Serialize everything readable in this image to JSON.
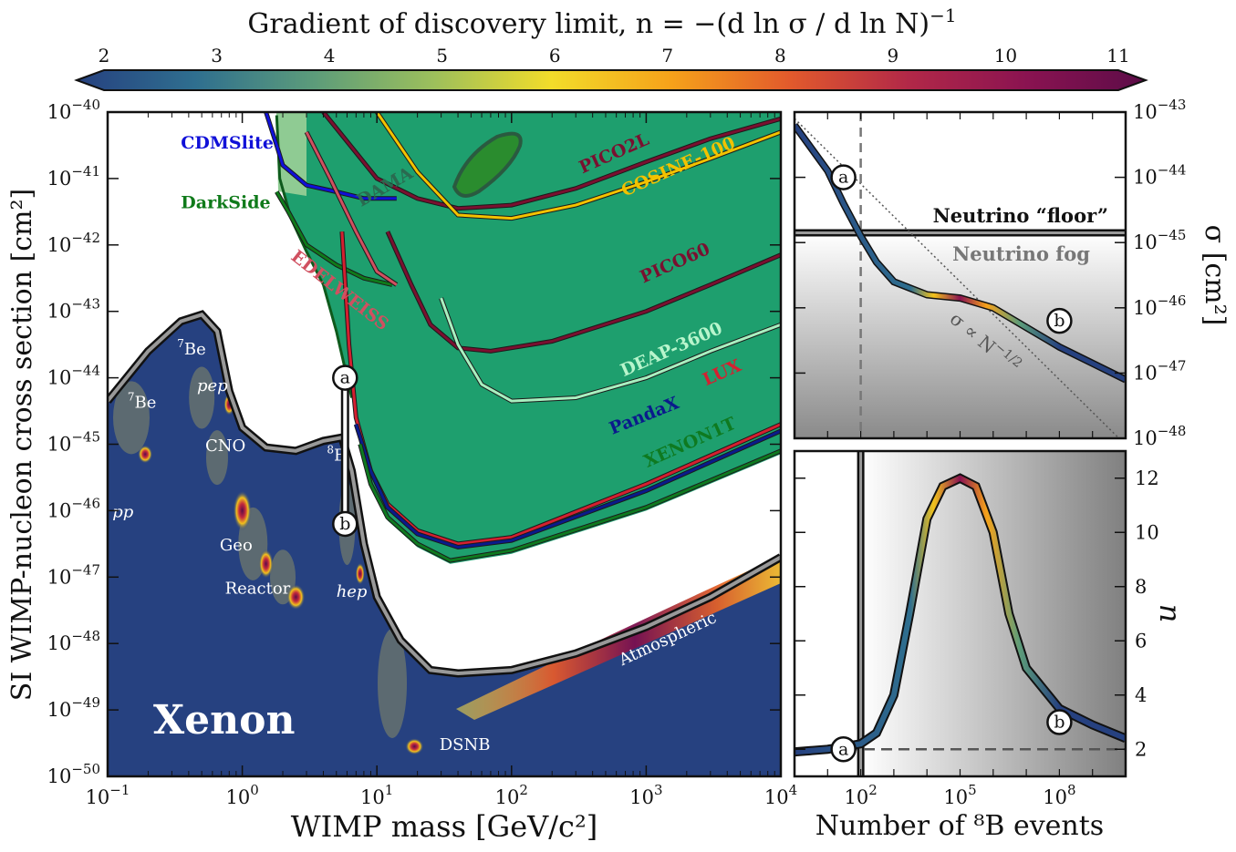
{
  "colorbar": {
    "title": "Gradient of discovery limit, n = −(d ln σ / d ln N)",
    "title_sup": "−1",
    "ticks": [
      "2",
      "3",
      "4",
      "5",
      "6",
      "7",
      "8",
      "9",
      "10",
      "11"
    ],
    "min": 2,
    "max": 11,
    "stops": [
      "#264180",
      "#2f6f8f",
      "#5c9c7a",
      "#9cbf5c",
      "#f2dc2a",
      "#f6a21a",
      "#e25a2c",
      "#b22848",
      "#8a1351",
      "#5c0c48"
    ]
  },
  "chart_data": [
    {
      "id": "main",
      "type": "line",
      "title": "",
      "xlabel": "WIMP mass [GeV/c²]",
      "ylabel": "SI WIMP-nucleon cross section [cm²]",
      "xscale": "log",
      "yscale": "log",
      "xlim": [
        0.1,
        10000
      ],
      "ylim": [
        1e-50,
        1e-40
      ],
      "xticks": [
        {
          "base": "10",
          "exp": "−1"
        },
        {
          "base": "10",
          "exp": "0"
        },
        {
          "base": "10",
          "exp": "1"
        },
        {
          "base": "10",
          "exp": "2"
        },
        {
          "base": "10",
          "exp": "3"
        },
        {
          "base": "10",
          "exp": "4"
        }
      ],
      "yticks": [
        {
          "base": "10",
          "exp": "−50"
        },
        {
          "base": "10",
          "exp": "−49"
        },
        {
          "base": "10",
          "exp": "−48"
        },
        {
          "base": "10",
          "exp": "−47"
        },
        {
          "base": "10",
          "exp": "−46"
        },
        {
          "base": "10",
          "exp": "−45"
        },
        {
          "base": "10",
          "exp": "−44"
        },
        {
          "base": "10",
          "exp": "−43"
        },
        {
          "base": "10",
          "exp": "−42"
        },
        {
          "base": "10",
          "exp": "−41"
        },
        {
          "base": "10",
          "exp": "−40"
        }
      ],
      "target_label": "Xenon",
      "fog_boundary": [
        [
          0.1,
          -44.35
        ],
        [
          0.2,
          -43.6
        ],
        [
          0.35,
          -43.15
        ],
        [
          0.5,
          -43.05
        ],
        [
          0.65,
          -43.3
        ],
        [
          0.8,
          -44.2
        ],
        [
          1.0,
          -44.75
        ],
        [
          1.5,
          -45.05
        ],
        [
          2.5,
          -45.1
        ],
        [
          4,
          -44.95
        ],
        [
          5.5,
          -44.9
        ],
        [
          6.5,
          -45.4
        ],
        [
          8,
          -46.5
        ],
        [
          10,
          -47.3
        ],
        [
          15,
          -47.95
        ],
        [
          25,
          -48.4
        ],
        [
          40,
          -48.45
        ],
        [
          100,
          -48.4
        ],
        [
          300,
          -48.15
        ],
        [
          1000,
          -47.75
        ],
        [
          3000,
          -47.3
        ],
        [
          10000,
          -46.7
        ]
      ],
      "neutrino_sources": [
        {
          "label": "pp",
          "italic": true,
          "x": 0.13,
          "y": -46.1
        },
        {
          "label": "Be",
          "sup": "7",
          "x": 0.18,
          "y": -44.45
        },
        {
          "label": "Be",
          "sup": "7",
          "x": 0.42,
          "y": -43.65
        },
        {
          "label": "pep",
          "italic": true,
          "x": 0.6,
          "y": -44.2
        },
        {
          "label": "CNO",
          "x": 0.75,
          "y": -45.1
        },
        {
          "label": "Geo",
          "x": 0.9,
          "y": -46.6
        },
        {
          "label": "Reactor",
          "x": 1.3,
          "y": -47.25
        },
        {
          "label": "B",
          "sup": "8",
          "x": 5,
          "y": -45.25
        },
        {
          "label": "hep",
          "italic": true,
          "x": 6.5,
          "y": -47.3
        },
        {
          "label": "DSNB",
          "x": 45,
          "y": -49.6
        },
        {
          "label": "Atmospheric",
          "x": 1500,
          "y": -48.0,
          "rotate": -25
        }
      ],
      "hotspots": [
        {
          "x": 0.19,
          "y": -45.15,
          "rx": 8,
          "ry": 10
        },
        {
          "x": 0.8,
          "y": -44.4,
          "rx": 6,
          "ry": 12
        },
        {
          "x": 1.0,
          "y": -46.0,
          "rx": 10,
          "ry": 22
        },
        {
          "x": 1.5,
          "y": -46.8,
          "rx": 8,
          "ry": 16
        },
        {
          "x": 2.5,
          "y": -47.3,
          "rx": 10,
          "ry": 14
        },
        {
          "x": 7.5,
          "y": -46.95,
          "rx": 5,
          "ry": 12
        },
        {
          "x": 19,
          "y": -49.55,
          "rx": 10,
          "ry": 9
        }
      ],
      "limits": [
        {
          "name": "CDMSlite",
          "color": "#1010d8",
          "pts": [
            [
              1.5,
              -40
            ],
            [
              1.8,
              -40.5
            ],
            [
              2,
              -40.8
            ],
            [
              3,
              -41.1
            ],
            [
              5,
              -41.2
            ],
            [
              8,
              -41.3
            ],
            [
              14,
              -41.3
            ]
          ],
          "label_x": 0.35,
          "label_y": -40.55
        },
        {
          "name": "DarkSide",
          "color": "#0f7a1a",
          "pts": [
            [
              1.8,
              -41.2
            ],
            [
              2.2,
              -41.5
            ],
            [
              3,
              -42
            ],
            [
              5,
              -42.3
            ],
            [
              8,
              -42.5
            ],
            [
              13,
              -42.6
            ]
          ],
          "label_x": 0.35,
          "label_y": -41.45
        },
        {
          "name": "DAMA",
          "color": "#1e7a36",
          "label_x": 12,
          "label_y": -41.2,
          "rotate": -30
        },
        {
          "name": "PICO2L",
          "color": "#7a1030",
          "pts": [
            [
              4,
              -40
            ],
            [
              10,
              -41.0
            ],
            [
              20,
              -41.3
            ],
            [
              40,
              -41.45
            ],
            [
              100,
              -41.4
            ],
            [
              300,
              -41.15
            ],
            [
              1000,
              -40.75
            ],
            [
              3000,
              -40.4
            ],
            [
              10000,
              -40.1
            ]
          ],
          "label_x": 600,
          "label_y": -40.7,
          "rotate": -24
        },
        {
          "name": "COSINE-100",
          "color": "#f2c200",
          "pts": [
            [
              10,
              -40
            ],
            [
              20,
              -40.9
            ],
            [
              40,
              -41.55
            ],
            [
              100,
              -41.6
            ],
            [
              300,
              -41.4
            ],
            [
              1000,
              -41.05
            ],
            [
              3000,
              -40.7
            ],
            [
              10000,
              -40.3
            ]
          ],
          "label_x": 1800,
          "label_y": -40.9,
          "rotate": -24
        },
        {
          "name": "PICO60",
          "color": "#7a1030",
          "pts": [
            [
              12,
              -41.8
            ],
            [
              18,
              -42.6
            ],
            [
              25,
              -43.2
            ],
            [
              40,
              -43.55
            ],
            [
              70,
              -43.6
            ],
            [
              200,
              -43.45
            ],
            [
              1000,
              -43.0
            ],
            [
              3000,
              -42.6
            ],
            [
              10000,
              -42.15
            ]
          ],
          "label_x": 1700,
          "label_y": -42.35,
          "rotate": -24
        },
        {
          "name": "DEAP-3600",
          "color": "#a8f0c0",
          "pts": [
            [
              30,
              -42.8
            ],
            [
              40,
              -43.5
            ],
            [
              60,
              -44.1
            ],
            [
              100,
              -44.35
            ],
            [
              300,
              -44.3
            ],
            [
              1000,
              -44.0
            ],
            [
              3000,
              -43.6
            ],
            [
              10000,
              -43.2
            ]
          ],
          "label_x": 1600,
          "label_y": -43.65,
          "rotate": -24
        },
        {
          "name": "EDELWEISS",
          "color": "#d05060",
          "pts": [
            [
              3,
              -40.3
            ],
            [
              4.5,
              -41.0
            ],
            [
              7,
              -41.8
            ],
            [
              10,
              -42.4
            ],
            [
              14,
              -42.6
            ]
          ],
          "label_x": 5,
          "label_y": -42.75,
          "rotate": 38
        },
        {
          "name": "LUX",
          "color": "#d42030",
          "pts": [
            [
              5.5,
              -41.8
            ],
            [
              6.2,
              -43.5
            ],
            [
              7,
              -44.6
            ],
            [
              9,
              -45.4
            ],
            [
              12,
              -45.9
            ],
            [
              20,
              -46.3
            ],
            [
              40,
              -46.5
            ],
            [
              100,
              -46.4
            ],
            [
              1000,
              -45.6
            ],
            [
              10000,
              -44.7
            ]
          ],
          "label_x": 3800,
          "label_y": -44.0,
          "rotate": -24
        },
        {
          "name": "PandaX",
          "color": "#0a1a8c",
          "pts": [
            [
              7,
              -44.7
            ],
            [
              9,
              -45.4
            ],
            [
              12,
              -45.95
            ],
            [
              20,
              -46.35
            ],
            [
              40,
              -46.55
            ],
            [
              100,
              -46.45
            ],
            [
              1000,
              -45.7
            ],
            [
              10000,
              -44.8
            ]
          ],
          "label_x": 1000,
          "label_y": -44.65,
          "rotate": -22
        },
        {
          "name": "XENON1T",
          "color": "#0e7a20",
          "pts": [
            [
              7.5,
              -45.0
            ],
            [
              9,
              -45.6
            ],
            [
              12,
              -46.1
            ],
            [
              20,
              -46.5
            ],
            [
              35,
              -46.75
            ],
            [
              100,
              -46.6
            ],
            [
              1000,
              -45.95
            ],
            [
              10000,
              -45.1
            ]
          ],
          "label_x": 2200,
          "label_y": -45.05,
          "rotate": -24
        }
      ],
      "markers": [
        {
          "label": "a",
          "x": 5.8,
          "y": -44
        },
        {
          "label": "b",
          "x": 5.8,
          "y": -46.2
        }
      ]
    },
    {
      "id": "top-right",
      "type": "line",
      "xlabel": "",
      "ylabel": "σ [cm²]",
      "xscale": "log",
      "yscale": "log",
      "xlim": [
        1,
        10000000000
      ],
      "ylim": [
        1e-48,
        1e-43
      ],
      "yticks": [
        {
          "base": "10",
          "exp": "−48"
        },
        {
          "base": "10",
          "exp": "−47"
        },
        {
          "base": "10",
          "exp": "−46"
        },
        {
          "base": "10",
          "exp": "−45"
        },
        {
          "base": "10",
          "exp": "−44"
        },
        {
          "base": "10",
          "exp": "−43"
        }
      ],
      "floor_label": "Neutrino “floor”",
      "floor_y": -44.85,
      "fog_label": "Neutrino fog",
      "scaling_label": "σ ∝ N",
      "scaling_sup": "−1/2",
      "vline_x": 100,
      "curve": [
        [
          1,
          -43.2
        ],
        [
          10,
          -43.9
        ],
        [
          30,
          -44.4
        ],
        [
          100,
          -44.9
        ],
        [
          300,
          -45.3
        ],
        [
          1000,
          -45.6
        ],
        [
          10000,
          -45.8
        ],
        [
          100000,
          -45.85
        ],
        [
          1000000,
          -46.0
        ],
        [
          10000000,
          -46.3
        ],
        [
          100000000,
          -46.6
        ],
        [
          1000000000,
          -46.85
        ],
        [
          10000000000,
          -47.1
        ]
      ],
      "markers": [
        {
          "label": "a",
          "x": 30,
          "y": -44.0
        },
        {
          "label": "b",
          "x": 100000000,
          "y": -46.2
        }
      ]
    },
    {
      "id": "bottom-right",
      "type": "line",
      "xlabel": "Number of ⁸B events",
      "ylabel": "n",
      "xscale": "log",
      "xlim": [
        1,
        10000000000
      ],
      "ylim": [
        1,
        13
      ],
      "xticks": [
        {
          "base": "10",
          "exp": "2"
        },
        {
          "base": "10",
          "exp": "5"
        },
        {
          "base": "10",
          "exp": "8"
        }
      ],
      "yticks": [
        "2",
        "4",
        "6",
        "8",
        "10",
        "12"
      ],
      "hline_y": 2,
      "vline_x": 100,
      "curve": [
        [
          1,
          1.9
        ],
        [
          10,
          2.0
        ],
        [
          100,
          2.2
        ],
        [
          300,
          2.6
        ],
        [
          1000,
          4.0
        ],
        [
          3000,
          7.0
        ],
        [
          10000,
          10.5
        ],
        [
          30000,
          11.7
        ],
        [
          100000,
          12.0
        ],
        [
          300000,
          11.7
        ],
        [
          1000000,
          10.0
        ],
        [
          3000000,
          7.0
        ],
        [
          10000000,
          5.0
        ],
        [
          100000000,
          3.5
        ],
        [
          1000000000,
          2.9
        ],
        [
          10000000000,
          2.4
        ]
      ],
      "markers": [
        {
          "label": "a",
          "x": 30,
          "y": 2.0
        },
        {
          "label": "b",
          "x": 100000000,
          "y": 3.0
        }
      ]
    }
  ]
}
